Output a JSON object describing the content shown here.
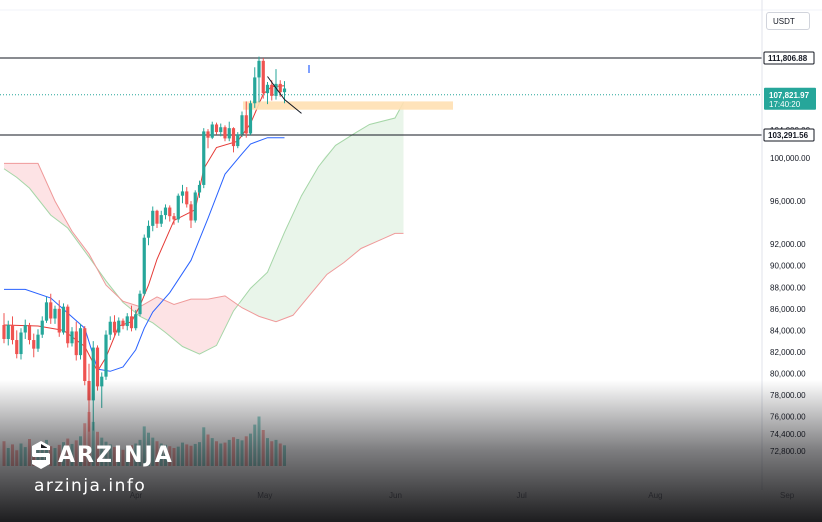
{
  "currency": "USDT",
  "chart_data": {
    "type": "candlestick",
    "title": "",
    "ylim": [
      72000,
      113500
    ],
    "price_axis_ticks": [
      "104,000.00",
      "100,000.00",
      "96,000.00",
      "92,000.00",
      "90,000.00",
      "88,000.00",
      "86,000.00",
      "84,000.00",
      "82,000.00",
      "80,000.00",
      "78,000.00",
      "76,000.00",
      "74,400.00",
      "72,800.00"
    ],
    "price_axis_values": [
      104000,
      100000,
      96000,
      92000,
      90000,
      88000,
      86000,
      84000,
      82000,
      80000,
      78000,
      76000,
      74400,
      72800
    ],
    "month_labels": [
      "Apr",
      "May",
      "Jun",
      "Jul",
      "Aug",
      "Sep"
    ],
    "month_days": [
      31,
      61,
      92,
      122,
      153,
      184
    ],
    "highlighted_levels": [
      {
        "label": "111,806.88",
        "value": 111806.88,
        "style": "line-tag"
      },
      {
        "label": "103,291.56",
        "value": 103291.56,
        "style": "line-tag-dark"
      }
    ],
    "current_price": {
      "label": "107,821.97",
      "value": 107821.97,
      "countdown": "17:40:20"
    },
    "zone": {
      "low": 106200,
      "high": 107100,
      "color": "#ffe0b2"
    },
    "candles": [
      [
        84500,
        85600,
        82800,
        83200
      ],
      [
        83200,
        84900,
        82600,
        84500
      ],
      [
        84500,
        85300,
        82700,
        83100
      ],
      [
        83100,
        84000,
        81400,
        81800
      ],
      [
        81800,
        84200,
        81300,
        83800
      ],
      [
        83800,
        85000,
        83200,
        84500
      ],
      [
        84500,
        84700,
        82700,
        83100
      ],
      [
        83100,
        83700,
        81500,
        82300
      ],
      [
        82300,
        84100,
        82000,
        83600
      ],
      [
        83600,
        85300,
        83300,
        84900
      ],
      [
        84900,
        87100,
        84700,
        86600
      ],
      [
        86600,
        87400,
        84600,
        85100
      ],
      [
        85100,
        86300,
        84600,
        86000
      ],
      [
        86000,
        86800,
        83400,
        83800
      ],
      [
        83800,
        86500,
        83600,
        86200
      ],
      [
        86200,
        86400,
        82400,
        82800
      ],
      [
        82800,
        84300,
        82500,
        83900
      ],
      [
        83900,
        84800,
        81200,
        81700
      ],
      [
        81700,
        84600,
        81300,
        84200
      ],
      [
        84200,
        84400,
        78900,
        79300
      ],
      [
        79300,
        80900,
        74600,
        77500
      ],
      [
        77500,
        83000,
        74700,
        82400
      ],
      [
        82400,
        82600,
        78400,
        78800
      ],
      [
        78800,
        80100,
        76800,
        79700
      ],
      [
        79700,
        84000,
        79400,
        83600
      ],
      [
        83600,
        85300,
        83100,
        84800
      ],
      [
        84800,
        85400,
        83400,
        83800
      ],
      [
        83800,
        85200,
        83500,
        84900
      ],
      [
        84900,
        85100,
        84100,
        84400
      ],
      [
        84400,
        85600,
        84000,
        85300
      ],
      [
        85300,
        86300,
        83900,
        84200
      ],
      [
        84200,
        85900,
        84000,
        85500
      ],
      [
        85500,
        87700,
        85300,
        87400
      ],
      [
        87400,
        92900,
        87200,
        92600
      ],
      [
        92600,
        94200,
        91900,
        93700
      ],
      [
        93700,
        95500,
        93200,
        95100
      ],
      [
        95100,
        95200,
        93500,
        93900
      ],
      [
        93900,
        95100,
        93600,
        94700
      ],
      [
        94700,
        95700,
        94300,
        95400
      ],
      [
        95400,
        95600,
        94100,
        94600
      ],
      [
        94600,
        94900,
        93800,
        94300
      ],
      [
        94300,
        96700,
        94000,
        96500
      ],
      [
        96500,
        97500,
        95800,
        96900
      ],
      [
        96900,
        97300,
        95400,
        95700
      ],
      [
        95700,
        96000,
        93500,
        94200
      ],
      [
        94200,
        97000,
        94000,
        96800
      ],
      [
        96800,
        97900,
        96300,
        97500
      ],
      [
        97500,
        104200,
        97200,
        103800
      ],
      [
        103800,
        104100,
        101400,
        102900
      ],
      [
        102900,
        104900,
        102700,
        104600
      ],
      [
        104600,
        104800,
        103400,
        103700
      ],
      [
        103700,
        104700,
        103100,
        104300
      ],
      [
        104300,
        104500,
        102400,
        102800
      ],
      [
        102800,
        104900,
        102400,
        104200
      ],
      [
        104200,
        104300,
        100800,
        101700
      ],
      [
        101700,
        103700,
        101400,
        103400
      ],
      [
        103400,
        106000,
        103000,
        105600
      ],
      [
        105600,
        107100,
        102900,
        103500
      ],
      [
        103500,
        107200,
        103300,
        106900
      ],
      [
        106900,
        110800,
        106400,
        109700
      ],
      [
        109700,
        111950,
        107000,
        111500
      ],
      [
        111500,
        111800,
        107400,
        108000
      ],
      [
        108000,
        109200,
        106800,
        108900
      ],
      [
        108900,
        109400,
        107200,
        107700
      ],
      [
        107700,
        110600,
        107300,
        109000
      ],
      [
        109000,
        109400,
        107600,
        108100
      ],
      [
        108100,
        109300,
        106900,
        108500
      ]
    ],
    "volumes": [
      55,
      40,
      48,
      35,
      50,
      42,
      60,
      45,
      38,
      52,
      58,
      44,
      40,
      47,
      53,
      61,
      49,
      57,
      66,
      95,
      120,
      98,
      76,
      63,
      54,
      48,
      42,
      39,
      36,
      41,
      46,
      50,
      58,
      88,
      74,
      63,
      55,
      50,
      47,
      44,
      40,
      43,
      52,
      48,
      45,
      49,
      53,
      86,
      70,
      62,
      55,
      50,
      52,
      58,
      64,
      60,
      57,
      66,
      72,
      92,
      110,
      80,
      62,
      55,
      58,
      50,
      46
    ],
    "indicators": {
      "tenkan_sen": [
        [
          0,
          84500
        ],
        [
          8,
          84400
        ],
        [
          14,
          84000
        ],
        [
          19,
          82500
        ],
        [
          22,
          80200
        ],
        [
          24,
          81500
        ],
        [
          27,
          84400
        ],
        [
          30,
          84800
        ],
        [
          32,
          86300
        ],
        [
          34,
          88200
        ],
        [
          36,
          90600
        ],
        [
          40,
          94200
        ],
        [
          45,
          95200
        ],
        [
          47,
          99000
        ],
        [
          50,
          101500
        ],
        [
          55,
          102400
        ],
        [
          58,
          104700
        ],
        [
          61,
          107900
        ],
        [
          63,
          108700
        ],
        [
          66,
          108800
        ]
      ],
      "kijun_sen": [
        [
          0,
          87800
        ],
        [
          5,
          87800
        ],
        [
          11,
          87000
        ],
        [
          19,
          84200
        ],
        [
          22,
          80400
        ],
        [
          25,
          80200
        ],
        [
          28,
          80600
        ],
        [
          31,
          82200
        ],
        [
          33,
          84200
        ],
        [
          35,
          85700
        ],
        [
          39,
          87500
        ],
        [
          44,
          90500
        ],
        [
          48,
          94400
        ],
        [
          52,
          98500
        ],
        [
          56,
          100600
        ],
        [
          58,
          102000
        ],
        [
          62,
          102900
        ],
        [
          66,
          102900
        ]
      ],
      "senkou_span_a": [
        [
          0,
          99000
        ],
        [
          3,
          98200
        ],
        [
          6,
          97200
        ],
        [
          11,
          94700
        ],
        [
          15,
          93500
        ],
        [
          20,
          90800
        ],
        [
          24,
          88600
        ],
        [
          28,
          86600
        ],
        [
          32,
          85300
        ],
        [
          35,
          84700
        ],
        [
          38,
          83800
        ],
        [
          42,
          82500
        ],
        [
          46,
          81800
        ],
        [
          50,
          82600
        ],
        [
          54,
          85800
        ],
        [
          58,
          87900
        ],
        [
          62,
          89400
        ],
        [
          66,
          93100
        ],
        [
          70,
          96500
        ],
        [
          74,
          99200
        ],
        [
          78,
          101800
        ],
        [
          83,
          103700
        ],
        [
          86,
          104600
        ],
        [
          92,
          105300
        ],
        [
          94,
          107000
        ]
      ],
      "senkou_span_b": [
        [
          0,
          99500
        ],
        [
          8,
          99500
        ],
        [
          12,
          96000
        ],
        [
          16,
          93200
        ],
        [
          20,
          91100
        ],
        [
          24,
          88200
        ],
        [
          28,
          86700
        ],
        [
          32,
          86200
        ],
        [
          36,
          87100
        ],
        [
          40,
          86400
        ],
        [
          44,
          86900
        ],
        [
          48,
          86900
        ],
        [
          52,
          87200
        ],
        [
          56,
          86100
        ],
        [
          60,
          85300
        ],
        [
          64,
          84800
        ],
        [
          68,
          85400
        ],
        [
          72,
          87300
        ],
        [
          76,
          89200
        ],
        [
          80,
          90300
        ],
        [
          84,
          91600
        ],
        [
          88,
          92300
        ],
        [
          92,
          93000
        ],
        [
          94,
          93000
        ]
      ],
      "chikou_annotation": [
        [
          62,
          109800
        ],
        [
          66,
          107300
        ],
        [
          70,
          105800
        ]
      ]
    }
  }
}
